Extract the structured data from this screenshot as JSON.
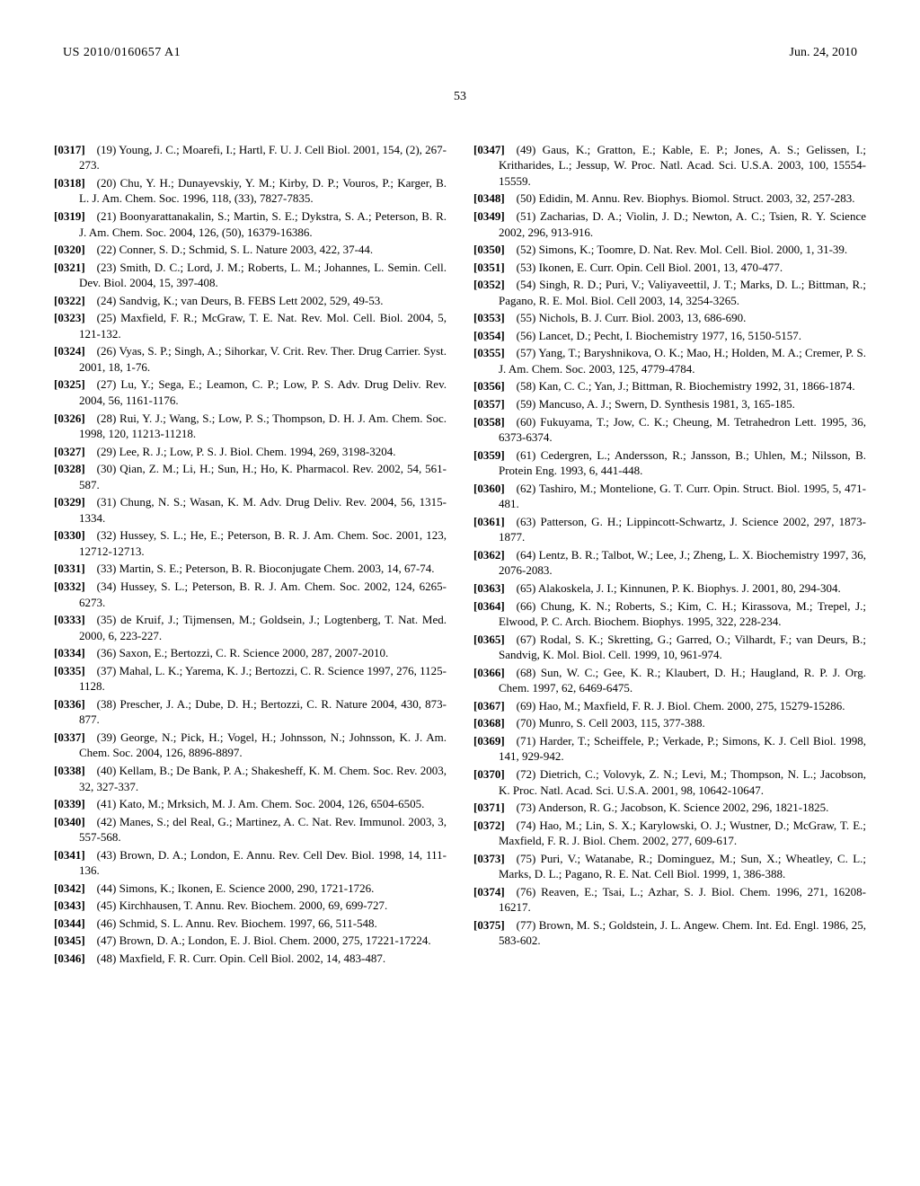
{
  "header": {
    "publication_number": "US 2010/0160657 A1",
    "publication_date": "Jun. 24, 2010",
    "page_number": "53"
  },
  "references": [
    {
      "n": "[0317]",
      "t": "(19) Young, J. C.; Moarefi, I.; Hartl, F. U. J. Cell Biol. 2001, 154, (2), 267-273."
    },
    {
      "n": "[0318]",
      "t": "(20) Chu, Y. H.; Dunayevskiy, Y. M.; Kirby, D. P.; Vouros, P.; Karger, B. L. J. Am. Chem. Soc. 1996, 118, (33), 7827-7835."
    },
    {
      "n": "[0319]",
      "t": "(21) Boonyarattanakalin, S.; Martin, S. E.; Dykstra, S. A.; Peterson, B. R. J. Am. Chem. Soc. 2004, 126, (50), 16379-16386."
    },
    {
      "n": "[0320]",
      "t": "(22) Conner, S. D.; Schmid, S. L. Nature 2003, 422, 37-44."
    },
    {
      "n": "[0321]",
      "t": "(23) Smith, D. C.; Lord, J. M.; Roberts, L. M.; Johannes, L. Semin. Cell. Dev. Biol. 2004, 15, 397-408."
    },
    {
      "n": "[0322]",
      "t": "(24) Sandvig, K.; van Deurs, B. FEBS Lett 2002, 529, 49-53."
    },
    {
      "n": "[0323]",
      "t": "(25) Maxfield, F. R.; McGraw, T. E. Nat. Rev. Mol. Cell. Biol. 2004, 5, 121-132."
    },
    {
      "n": "[0324]",
      "t": "(26) Vyas, S. P.; Singh, A.; Sihorkar, V. Crit. Rev. Ther. Drug Carrier. Syst. 2001, 18, 1-76."
    },
    {
      "n": "[0325]",
      "t": "(27) Lu, Y.; Sega, E.; Leamon, C. P.; Low, P. S. Adv. Drug Deliv. Rev. 2004, 56, 1161-1176."
    },
    {
      "n": "[0326]",
      "t": "(28) Rui, Y. J.; Wang, S.; Low, P. S.; Thompson, D. H. J. Am. Chem. Soc. 1998, 120, 11213-11218."
    },
    {
      "n": "[0327]",
      "t": "(29) Lee, R. J.; Low, P. S. J. Biol. Chem. 1994, 269, 3198-3204."
    },
    {
      "n": "[0328]",
      "t": "(30) Qian, Z. M.; Li, H.; Sun, H.; Ho, K. Pharmacol. Rev. 2002, 54, 561-587."
    },
    {
      "n": "[0329]",
      "t": "(31) Chung, N. S.; Wasan, K. M. Adv. Drug Deliv. Rev. 2004, 56, 1315-1334."
    },
    {
      "n": "[0330]",
      "t": "(32) Hussey, S. L.; He, E.; Peterson, B. R. J. Am. Chem. Soc. 2001, 123, 12712-12713."
    },
    {
      "n": "[0331]",
      "t": "(33) Martin, S. E.; Peterson, B. R. Bioconjugate Chem. 2003, 14, 67-74."
    },
    {
      "n": "[0332]",
      "t": "(34) Hussey, S. L.; Peterson, B. R. J. Am. Chem. Soc. 2002, 124, 6265-6273."
    },
    {
      "n": "[0333]",
      "t": "(35) de Kruif, J.; Tijmensen, M.; Goldsein, J.; Logtenberg, T. Nat. Med. 2000, 6, 223-227."
    },
    {
      "n": "[0334]",
      "t": "(36) Saxon, E.; Bertozzi, C. R. Science 2000, 287, 2007-2010."
    },
    {
      "n": "[0335]",
      "t": "(37) Mahal, L. K.; Yarema, K. J.; Bertozzi, C. R. Science 1997, 276, 1125-1128."
    },
    {
      "n": "[0336]",
      "t": "(38) Prescher, J. A.; Dube, D. H.; Bertozzi, C. R. Nature 2004, 430, 873-877."
    },
    {
      "n": "[0337]",
      "t": "(39) George, N.; Pick, H.; Vogel, H.; Johnsson, N.; Johnsson, K. J. Am. Chem. Soc. 2004, 126, 8896-8897."
    },
    {
      "n": "[0338]",
      "t": "(40) Kellam, B.; De Bank, P. A.; Shakesheff, K. M. Chem. Soc. Rev. 2003, 32, 327-337."
    },
    {
      "n": "[0339]",
      "t": "(41) Kato, M.; Mrksich, M. J. Am. Chem. Soc. 2004, 126, 6504-6505."
    },
    {
      "n": "[0340]",
      "t": "(42) Manes, S.; del Real, G.; Martinez, A. C. Nat. Rev. Immunol. 2003, 3, 557-568."
    },
    {
      "n": "[0341]",
      "t": "(43) Brown, D. A.; London, E. Annu. Rev. Cell Dev. Biol. 1998, 14, 111-136."
    },
    {
      "n": "[0342]",
      "t": "(44) Simons, K.; Ikonen, E. Science 2000, 290, 1721-1726."
    },
    {
      "n": "[0343]",
      "t": "(45) Kirchhausen, T. Annu. Rev. Biochem. 2000, 69, 699-727."
    },
    {
      "n": "[0344]",
      "t": "(46) Schmid, S. L. Annu. Rev. Biochem. 1997, 66, 511-548."
    },
    {
      "n": "[0345]",
      "t": "(47) Brown, D. A.; London, E. J. Biol. Chem. 2000, 275, 17221-17224."
    },
    {
      "n": "[0346]",
      "t": "(48) Maxfield, F. R. Curr. Opin. Cell Biol. 2002, 14, 483-487."
    },
    {
      "n": "[0347]",
      "t": "(49) Gaus, K.; Gratton, E.; Kable, E. P.; Jones, A. S.; Gelissen, I.; Kritharides, L.; Jessup, W. Proc. Natl. Acad. Sci. U.S.A. 2003, 100, 15554-15559."
    },
    {
      "n": "[0348]",
      "t": "(50) Edidin, M. Annu. Rev. Biophys. Biomol. Struct. 2003, 32, 257-283."
    },
    {
      "n": "[0349]",
      "t": "(51) Zacharias, D. A.; Violin, J. D.; Newton, A. C.; Tsien, R. Y. Science 2002, 296, 913-916."
    },
    {
      "n": "[0350]",
      "t": "(52) Simons, K.; Toomre, D. Nat. Rev. Mol. Cell. Biol. 2000, 1, 31-39."
    },
    {
      "n": "[0351]",
      "t": "(53) Ikonen, E. Curr. Opin. Cell Biol. 2001, 13, 470-477."
    },
    {
      "n": "[0352]",
      "t": "(54) Singh, R. D.; Puri, V.; Valiyaveettil, J. T.; Marks, D. L.; Bittman, R.; Pagano, R. E. Mol. Biol. Cell 2003, 14, 3254-3265."
    },
    {
      "n": "[0353]",
      "t": "(55) Nichols, B. J. Curr. Biol. 2003, 13, 686-690."
    },
    {
      "n": "[0354]",
      "t": "(56) Lancet, D.; Pecht, I. Biochemistry 1977, 16, 5150-5157."
    },
    {
      "n": "[0355]",
      "t": "(57) Yang, T.; Baryshnikova, O. K.; Mao, H.; Holden, M. A.; Cremer, P. S. J. Am. Chem. Soc. 2003, 125, 4779-4784."
    },
    {
      "n": "[0356]",
      "t": "(58) Kan, C. C.; Yan, J.; Bittman, R. Biochemistry 1992, 31, 1866-1874."
    },
    {
      "n": "[0357]",
      "t": "(59) Mancuso, A. J.; Swern, D. Synthesis 1981, 3, 165-185."
    },
    {
      "n": "[0358]",
      "t": "(60) Fukuyama, T.; Jow, C. K.; Cheung, M. Tetrahedron Lett. 1995, 36, 6373-6374."
    },
    {
      "n": "[0359]",
      "t": "(61) Cedergren, L.; Andersson, R.; Jansson, B.; Uhlen, M.; Nilsson, B. Protein Eng. 1993, 6, 441-448."
    },
    {
      "n": "[0360]",
      "t": "(62) Tashiro, M.; Montelione, G. T. Curr. Opin. Struct. Biol. 1995, 5, 471-481."
    },
    {
      "n": "[0361]",
      "t": "(63) Patterson, G. H.; Lippincott-Schwartz, J. Science 2002, 297, 1873-1877."
    },
    {
      "n": "[0362]",
      "t": "(64) Lentz, B. R.; Talbot, W.; Lee, J.; Zheng, L. X. Biochemistry 1997, 36, 2076-2083."
    },
    {
      "n": "[0363]",
      "t": "(65) Alakoskela, J. I.; Kinnunen, P. K. Biophys. J. 2001, 80, 294-304."
    },
    {
      "n": "[0364]",
      "t": "(66) Chung, K. N.; Roberts, S.; Kim, C. H.; Kirassova, M.; Trepel, J.; Elwood, P. C. Arch. Biochem. Biophys. 1995, 322, 228-234."
    },
    {
      "n": "[0365]",
      "t": "(67) Rodal, S. K.; Skretting, G.; Garred, O.; Vilhardt, F.; van Deurs, B.; Sandvig, K. Mol. Biol. Cell. 1999, 10, 961-974."
    },
    {
      "n": "[0366]",
      "t": "(68) Sun, W. C.; Gee, K. R.; Klaubert, D. H.; Haugland, R. P. J. Org. Chem. 1997, 62, 6469-6475."
    },
    {
      "n": "[0367]",
      "t": "(69) Hao, M.; Maxfield, F. R. J. Biol. Chem. 2000, 275, 15279-15286."
    },
    {
      "n": "[0368]",
      "t": "(70) Munro, S. Cell 2003, 115, 377-388."
    },
    {
      "n": "[0369]",
      "t": "(71) Harder, T.; Scheiffele, P.; Verkade, P.; Simons, K. J. Cell Biol. 1998, 141, 929-942."
    },
    {
      "n": "[0370]",
      "t": "(72) Dietrich, C.; Volovyk, Z. N.; Levi, M.; Thompson, N. L.; Jacobson, K. Proc. Natl. Acad. Sci. U.S.A. 2001, 98, 10642-10647."
    },
    {
      "n": "[0371]",
      "t": "(73) Anderson, R. G.; Jacobson, K. Science 2002, 296, 1821-1825."
    },
    {
      "n": "[0372]",
      "t": "(74) Hao, M.; Lin, S. X.; Karylowski, O. J.; Wustner, D.; McGraw, T. E.; Maxfield, F. R. J. Biol. Chem. 2002, 277, 609-617."
    },
    {
      "n": "[0373]",
      "t": "(75) Puri, V.; Watanabe, R.; Dominguez, M.; Sun, X.; Wheatley, C. L.; Marks, D. L.; Pagano, R. E. Nat. Cell Biol. 1999, 1, 386-388."
    },
    {
      "n": "[0374]",
      "t": "(76) Reaven, E.; Tsai, L.; Azhar, S. J. Biol. Chem. 1996, 271, 16208-16217."
    },
    {
      "n": "[0375]",
      "t": "(77) Brown, M. S.; Goldstein, J. L. Angew. Chem. Int. Ed. Engl. 1986, 25, 583-602."
    }
  ]
}
